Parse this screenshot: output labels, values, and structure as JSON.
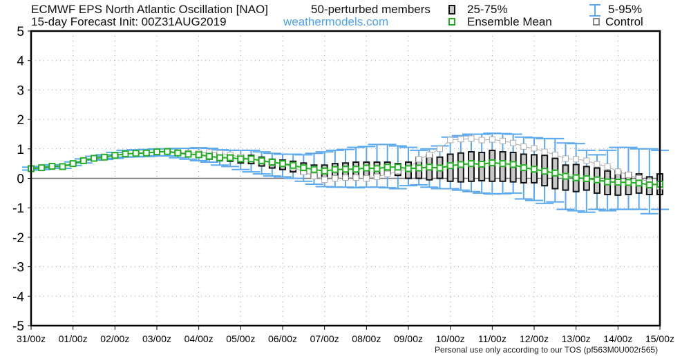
{
  "header": {
    "title": "ECMWF EPS North Atlantic Oscillation [NAO]",
    "members": "50-perturbed members",
    "init": "15-day Forecast Init: 00Z31AUG2019",
    "site": "weathermodels.com"
  },
  "legend": {
    "box": "25-75%",
    "whisker": "5-95%",
    "mean": "Ensemble Mean",
    "control": "Control"
  },
  "footer": "Personal use only according to our TOS (pf563M0U002r565)",
  "colors": {
    "whisker": "#5aa9f0",
    "box_fill": "#c8c8c8",
    "mean": "#22b022",
    "control": "#aaaaaa",
    "site": "#4da3f0"
  },
  "chart_data": {
    "type": "box",
    "title": "ECMWF EPS North Atlantic Oscillation [NAO]",
    "ylim": [
      -5,
      5
    ],
    "yticks": [
      "5",
      "4",
      "3",
      "2",
      "1",
      "0",
      "-1",
      "-2",
      "-3",
      "-4",
      "-5"
    ],
    "xticks": [
      "31/00z",
      "01/00z",
      "02/00z",
      "03/00z",
      "04/00z",
      "05/00z",
      "06/00z",
      "07/00z",
      "08/00z",
      "09/00z",
      "10/00z",
      "11/00z",
      "12/00z",
      "13/00z",
      "14/00z",
      "15/00z"
    ],
    "x_step_hours": 6,
    "mean": [
      0.33,
      0.36,
      0.41,
      0.4,
      0.5,
      0.6,
      0.68,
      0.72,
      0.78,
      0.83,
      0.85,
      0.86,
      0.9,
      0.91,
      0.86,
      0.82,
      0.8,
      0.75,
      0.7,
      0.7,
      0.66,
      0.66,
      0.6,
      0.55,
      0.5,
      0.44,
      0.36,
      0.3,
      0.25,
      0.3,
      0.31,
      0.31,
      0.35,
      0.33,
      0.38,
      0.38,
      0.33,
      0.35,
      0.38,
      0.35,
      0.43,
      0.47,
      0.5,
      0.48,
      0.53,
      0.5,
      0.47,
      0.36,
      0.31,
      0.24,
      0.18,
      0.07,
      0.02,
      -0.01,
      -0.05,
      -0.12,
      -0.13,
      -0.14,
      -0.16,
      -0.22,
      -0.2
    ],
    "control": [
      0.33,
      0.36,
      0.41,
      0.4,
      0.5,
      0.6,
      0.68,
      0.72,
      0.78,
      0.83,
      0.85,
      0.86,
      0.9,
      0.93,
      0.88,
      0.86,
      0.86,
      0.88,
      0.85,
      0.8,
      0.72,
      0.66,
      0.58,
      0.52,
      0.5,
      0.38,
      0.22,
      0.08,
      -0.05,
      0.0,
      0.02,
      0.02,
      0.0,
      0.05,
      0.15,
      0.25,
      0.32,
      0.65,
      0.8,
      1.0,
      1.3,
      1.33,
      1.35,
      1.3,
      1.32,
      1.27,
      1.2,
      1.08,
      1.02,
      0.9,
      0.8,
      0.67,
      0.65,
      0.6,
      0.48,
      0.4,
      0.23,
      0.12,
      0.0,
      -0.12,
      -0.28
    ],
    "p75": [
      0.36,
      0.38,
      0.43,
      0.42,
      0.53,
      0.63,
      0.71,
      0.75,
      0.82,
      0.87,
      0.89,
      0.9,
      0.94,
      0.95,
      0.92,
      0.9,
      0.9,
      0.88,
      0.85,
      0.8,
      0.78,
      0.78,
      0.72,
      0.65,
      0.62,
      0.58,
      0.52,
      0.45,
      0.45,
      0.5,
      0.52,
      0.55,
      0.55,
      0.55,
      0.55,
      0.5,
      0.55,
      0.7,
      0.8,
      0.72,
      0.82,
      0.86,
      0.9,
      0.88,
      0.95,
      0.9,
      0.88,
      0.82,
      0.8,
      0.78,
      0.68,
      0.45,
      0.47,
      0.4,
      0.35,
      0.25,
      0.25,
      0.2,
      0.15,
      0.05,
      0.15
    ],
    "p25": [
      0.3,
      0.33,
      0.38,
      0.37,
      0.46,
      0.56,
      0.65,
      0.68,
      0.74,
      0.79,
      0.8,
      0.82,
      0.86,
      0.86,
      0.8,
      0.76,
      0.72,
      0.65,
      0.6,
      0.58,
      0.52,
      0.5,
      0.42,
      0.35,
      0.3,
      0.22,
      0.15,
      0.05,
      -0.02,
      0.0,
      -0.02,
      0.0,
      0.05,
      0.1,
      0.15,
      0.1,
      0.0,
      0.0,
      -0.05,
      0.0,
      -0.1,
      -0.12,
      -0.1,
      -0.08,
      -0.1,
      -0.1,
      -0.12,
      -0.15,
      -0.15,
      -0.25,
      -0.35,
      -0.4,
      -0.45,
      -0.4,
      -0.5,
      -0.55,
      -0.57,
      -0.55,
      -0.5,
      -0.55,
      -0.55
    ],
    "p95": [
      0.38,
      0.4,
      0.46,
      0.45,
      0.56,
      0.66,
      0.75,
      0.8,
      0.88,
      0.95,
      0.97,
      0.98,
      1.0,
      1.0,
      1.02,
      1.02,
      1.04,
      1.02,
      0.97,
      0.95,
      0.95,
      0.95,
      0.9,
      0.85,
      0.82,
      0.82,
      0.8,
      0.85,
      0.9,
      0.95,
      0.98,
      1.05,
      1.08,
      1.15,
      1.15,
      1.1,
      1.05,
      0.95,
      1.0,
      1.1,
      1.4,
      1.45,
      1.5,
      1.5,
      1.53,
      1.52,
      1.5,
      1.4,
      1.38,
      1.35,
      1.35,
      1.2,
      1.18,
      0.95,
      0.8,
      0.95,
      1.05,
      1.05,
      1.0,
      1.0,
      0.95
    ],
    "p5": [
      0.28,
      0.3,
      0.35,
      0.34,
      0.44,
      0.52,
      0.62,
      0.64,
      0.68,
      0.72,
      0.73,
      0.74,
      0.76,
      0.76,
      0.7,
      0.65,
      0.6,
      0.55,
      0.45,
      0.4,
      0.3,
      0.22,
      0.15,
      0.08,
      0.05,
      0.0,
      -0.1,
      -0.2,
      -0.28,
      -0.3,
      -0.3,
      -0.32,
      -0.3,
      -0.3,
      -0.32,
      -0.35,
      -0.25,
      -0.22,
      -0.3,
      -0.35,
      -0.35,
      -0.4,
      -0.45,
      -0.5,
      -0.53,
      -0.52,
      -0.5,
      -0.7,
      -0.75,
      -0.85,
      -0.8,
      -1.05,
      -1.1,
      -1.15,
      -1.05,
      -1.1,
      -1.05,
      -1.05,
      -1.05,
      -1.2,
      -1.05
    ]
  }
}
